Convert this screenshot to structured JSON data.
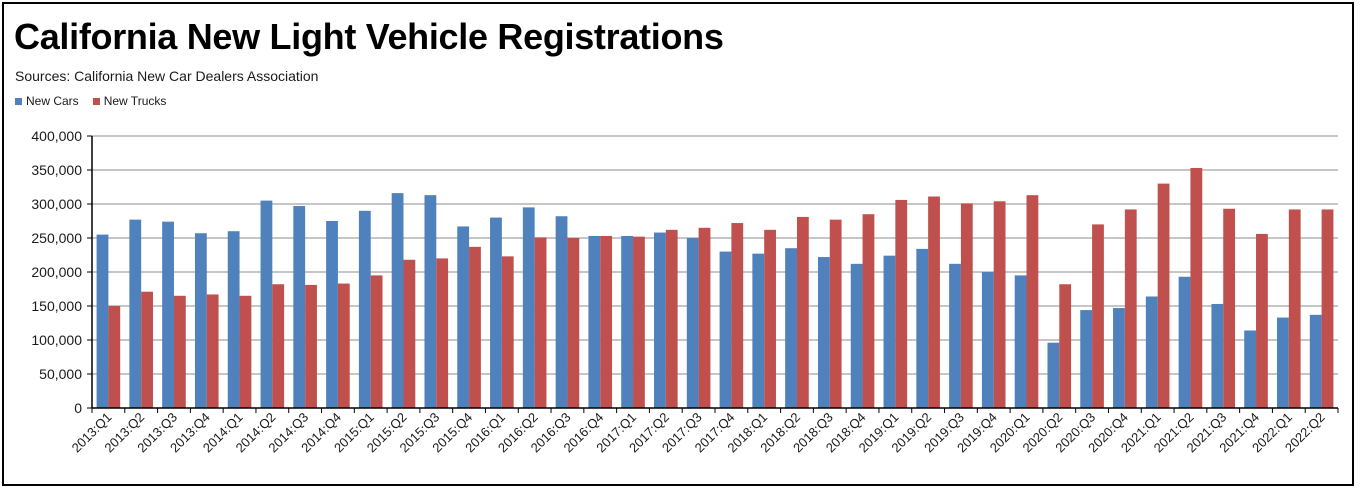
{
  "chart_data": {
    "type": "bar",
    "title": "California New Light Vehicle Registrations",
    "subtitle": "Sources:  California New Car Dealers Association",
    "xlabel": "",
    "ylabel": "",
    "ylim": [
      0,
      400000
    ],
    "yticks": [
      0,
      50000,
      100000,
      150000,
      200000,
      250000,
      300000,
      350000,
      400000
    ],
    "ytick_labels": [
      "0",
      "50,000",
      "100,000",
      "150,000",
      "200,000",
      "250,000",
      "300,000",
      "350,000",
      "400,000"
    ],
    "grid": true,
    "legend_position": "top-left",
    "categories": [
      "2013:Q1",
      "2013:Q2",
      "2013:Q3",
      "2013:Q4",
      "2014:Q1",
      "2014:Q2",
      "2014:Q3",
      "2014:Q4",
      "2015:Q1",
      "2015:Q2",
      "2015:Q3",
      "2015:Q4",
      "2016:Q1",
      "2016:Q2",
      "2016:Q3",
      "2016:Q4",
      "2017:Q1",
      "2017:Q2",
      "2017:Q3",
      "2017:Q4",
      "2018:Q1",
      "2018:Q2",
      "2018:Q3",
      "2018:Q4",
      "2019:Q1",
      "2019:Q2",
      "2019:Q3",
      "2019:Q4",
      "2020:Q1",
      "2020:Q2",
      "2020:Q3",
      "2020:Q4",
      "2021:Q1",
      "2021:Q2",
      "2021:Q3",
      "2021:Q4",
      "2022:Q1",
      "2022:Q2"
    ],
    "series": [
      {
        "name": "New Cars",
        "color": "#4f81bd",
        "values": [
          255000,
          277000,
          274000,
          257000,
          260000,
          305000,
          297000,
          275000,
          290000,
          316000,
          313000,
          267000,
          280000,
          295000,
          282000,
          253000,
          253000,
          258000,
          250000,
          230000,
          227000,
          235000,
          222000,
          212000,
          224000,
          234000,
          212000,
          200000,
          195000,
          96000,
          144000,
          147000,
          164000,
          193000,
          153000,
          114000,
          133000,
          137000
        ]
      },
      {
        "name": "New Trucks",
        "color": "#c0504d",
        "values": [
          150000,
          171000,
          165000,
          167000,
          165000,
          182000,
          181000,
          183000,
          195000,
          218000,
          220000,
          237000,
          223000,
          251000,
          250000,
          253000,
          252000,
          262000,
          265000,
          272000,
          262000,
          281000,
          277000,
          285000,
          306000,
          311000,
          301000,
          304000,
          313000,
          182000,
          270000,
          292000,
          330000,
          353000,
          293000,
          256000,
          292000,
          292000
        ]
      }
    ]
  }
}
